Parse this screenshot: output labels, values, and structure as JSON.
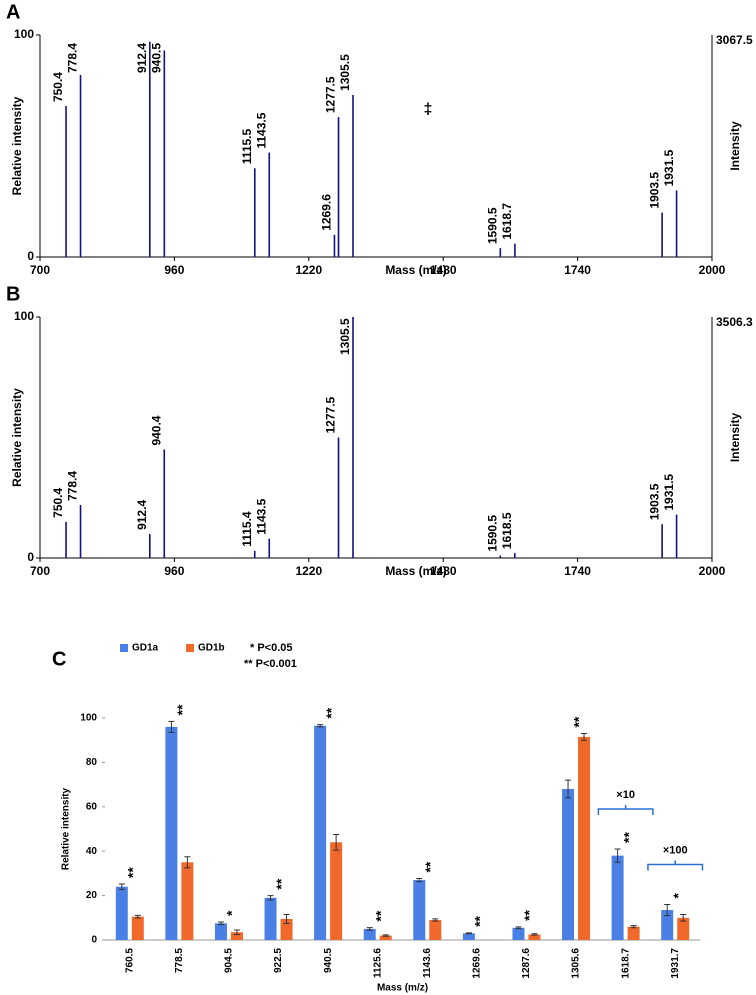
{
  "chart_data": [
    {
      "type": "spectrum",
      "panel_label": "A",
      "color": "#10108a",
      "x": [
        750.4,
        778.4,
        912.4,
        940.5,
        1115.5,
        1143.5,
        1269.6,
        1277.5,
        1305.5,
        1590.5,
        1618.7,
        1903.5,
        1931.5
      ],
      "values": [
        68,
        82,
        97,
        93,
        40,
        47,
        10,
        63,
        73,
        4,
        6,
        20,
        30
      ],
      "xlim": [
        700,
        2000
      ],
      "xticks": [
        700,
        960,
        1220,
        1480,
        1740,
        2000
      ],
      "ylim": [
        0,
        100
      ],
      "yticks": [
        0,
        100
      ],
      "xlabel": "Mass (m/z)",
      "ylabel": "Relative intensity",
      "y2label": "Intensity",
      "max_intensity": 3067.5,
      "annotations": [
        "‡"
      ]
    },
    {
      "type": "spectrum",
      "panel_label": "B",
      "color": "#10108a",
      "x": [
        750.4,
        778.4,
        912.4,
        940.4,
        1115.4,
        1143.5,
        1277.5,
        1305.5,
        1590.5,
        1618.5,
        1903.5,
        1931.5
      ],
      "values": [
        15,
        22,
        10,
        45,
        3,
        8,
        50,
        100,
        1,
        2,
        14,
        18
      ],
      "xlim": [
        700,
        2000
      ],
      "xticks": [
        700,
        960,
        1220,
        1480,
        1740,
        2000
      ],
      "ylim": [
        0,
        100
      ],
      "yticks": [
        0,
        100
      ],
      "xlabel": "Mass (m/z)",
      "ylabel": "Relative intensity",
      "y2label": "Intensity",
      "max_intensity": 3506.3,
      "annotations": []
    },
    {
      "type": "bar",
      "panel_label": "C",
      "categories": [
        "760.5",
        "778.5",
        "904.5",
        "922.5",
        "940.5",
        "1125.6",
        "1143.6",
        "1269.6",
        "1287.6",
        "1305.6",
        "1618.7",
        "1931.7"
      ],
      "series": [
        {
          "name": "GD1a",
          "color": "#4a7fe6",
          "values": [
            24,
            96,
            7.5,
            19,
            96.5,
            5,
            27,
            3,
            5.5,
            68,
            38,
            13.5
          ],
          "errors": [
            1.2,
            2.5,
            0.6,
            1,
            0.5,
            0.6,
            0.7,
            0.2,
            0.4,
            4,
            3,
            2.5
          ]
        },
        {
          "name": "GD1b",
          "color": "#f0682a",
          "values": [
            10.5,
            35,
            3.5,
            9.5,
            44,
            2,
            9,
            null,
            2.5,
            91.5,
            6,
            10
          ],
          "errors": [
            0.6,
            2.5,
            1,
            2,
            3.5,
            0.3,
            0.5,
            null,
            0.3,
            1.5,
            0.5,
            1.5
          ]
        }
      ],
      "significance": [
        "**",
        "**",
        "*",
        "**",
        "**",
        "**",
        "**",
        "**",
        "**",
        "**",
        "**",
        "*"
      ],
      "significance_legend": [
        "* P<0.05",
        "** P<0.001"
      ],
      "brackets": [
        {
          "category": "1618.7",
          "label": "×10"
        },
        {
          "category": "1931.7",
          "label": "×100"
        }
      ],
      "ylim": [
        0,
        100
      ],
      "yticks": [
        0,
        20,
        40,
        60,
        80,
        100
      ],
      "xlabel": "Mass (m/z)",
      "ylabel": "Relative intensity"
    }
  ]
}
